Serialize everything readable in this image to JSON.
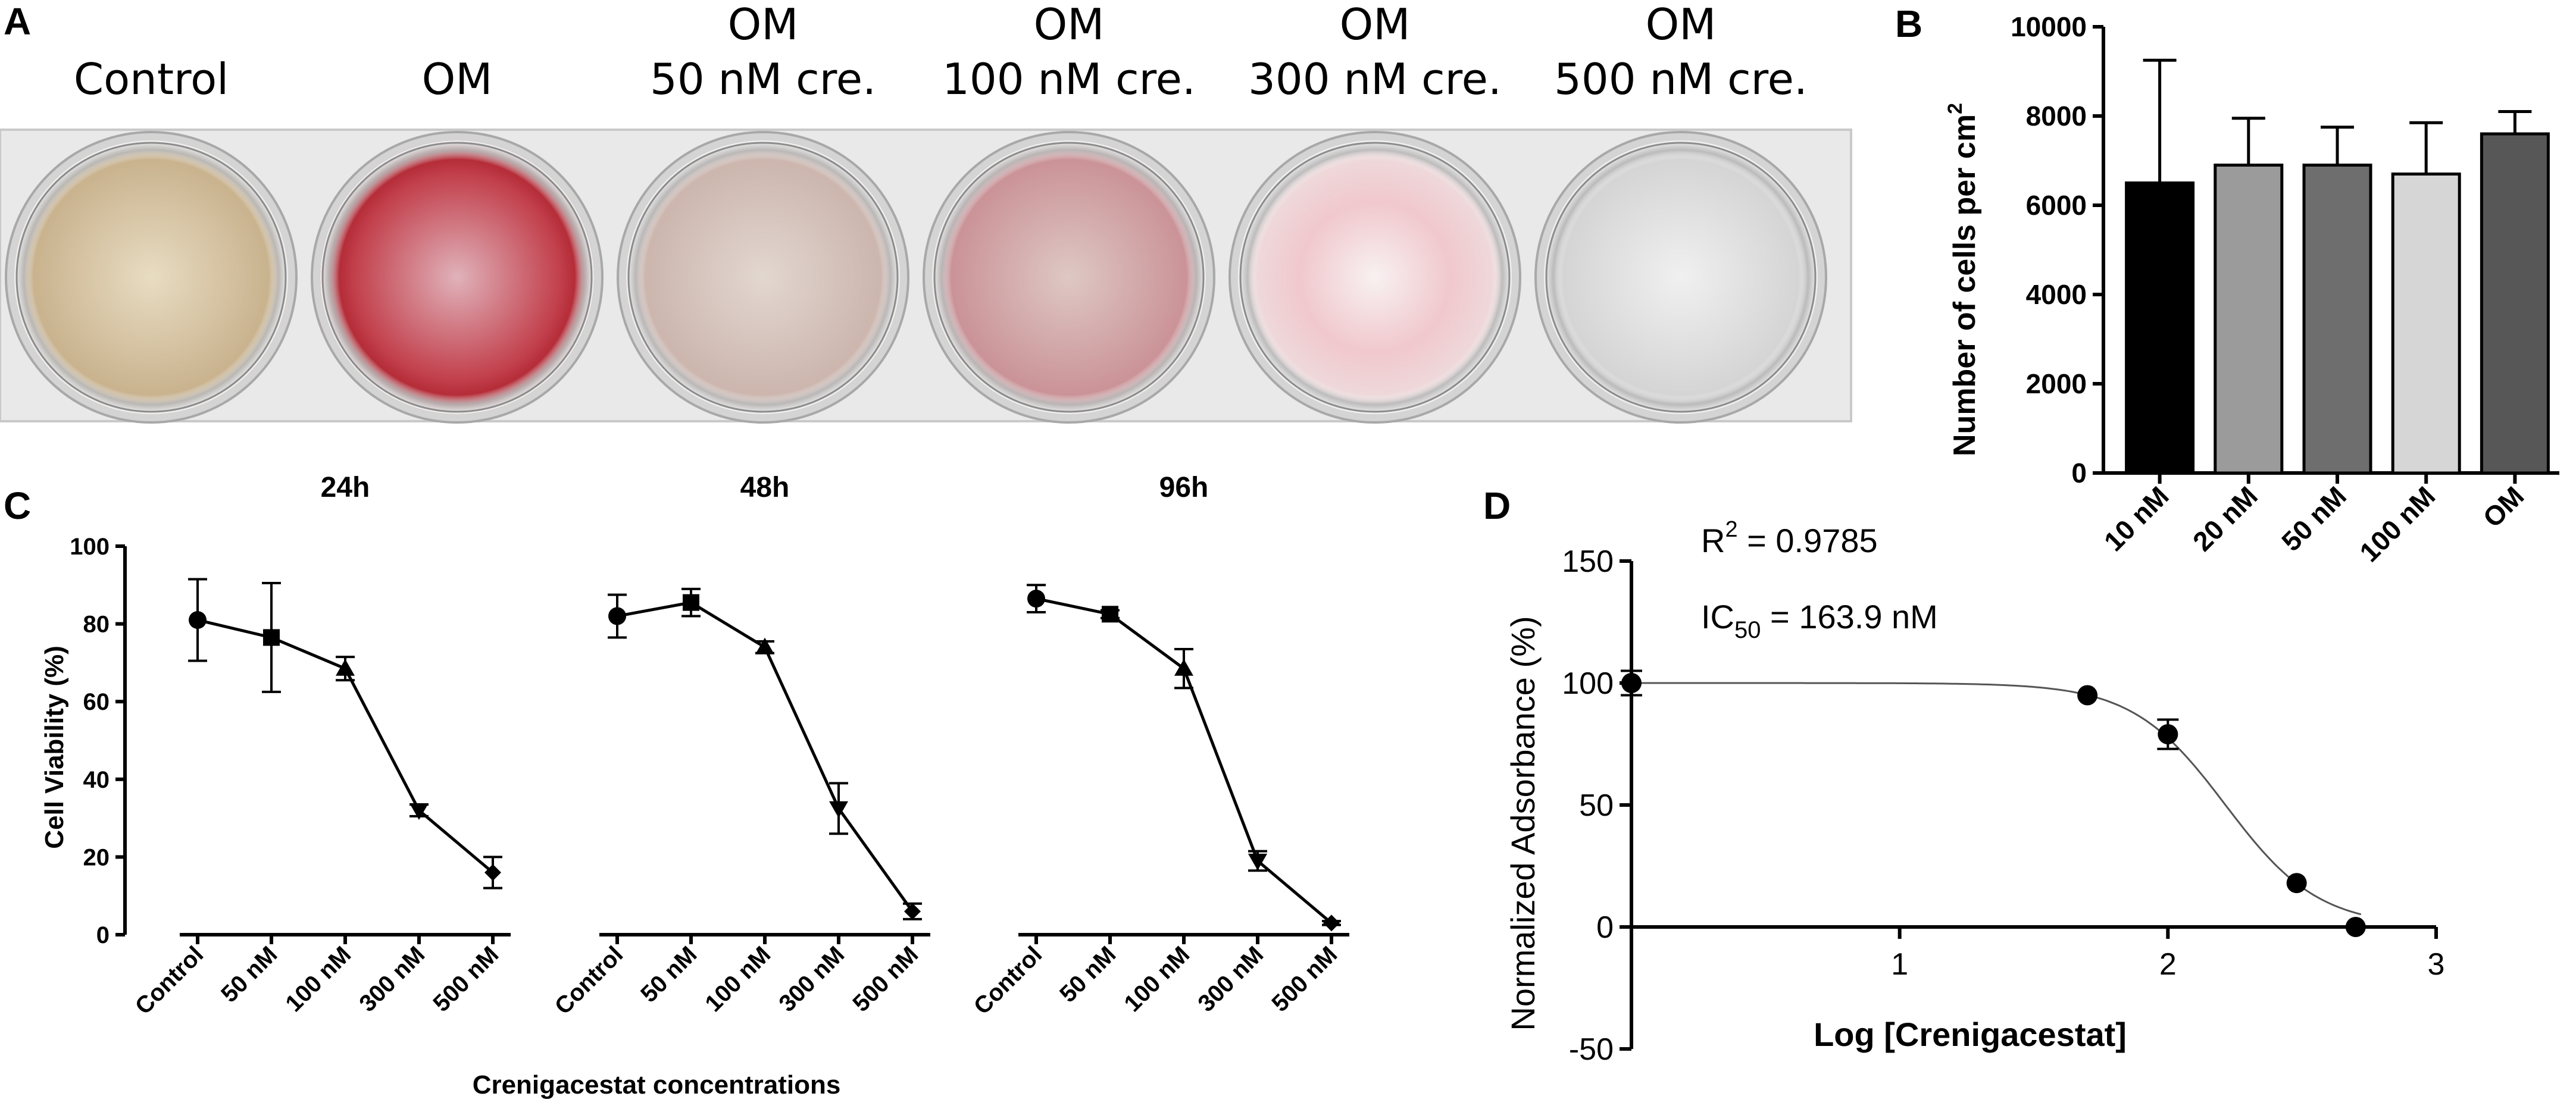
{
  "panel_letters": {
    "a": "A",
    "b": "B",
    "c": "C",
    "d": "D"
  },
  "panel_a": {
    "wells": [
      {
        "label_line1": "",
        "label_line2": "Control",
        "stain": "#c9b48f",
        "center_color": "#e6d7b8"
      },
      {
        "label_line1": "",
        "label_line2": "OM",
        "stain": "#b0202c",
        "center_color": "#d9889a"
      },
      {
        "label_line1": "OM",
        "label_line2": "50 nM cre.",
        "stain": "#c8aaa0",
        "center_color": "#ddd0c8"
      },
      {
        "label_line1": "OM",
        "label_line2": "100 nM cre.",
        "stain": "#c0606c",
        "center_color": "#dcc5c0"
      },
      {
        "label_line1": "OM",
        "label_line2": "300 nM cre.",
        "stain": "#e8a5ae",
        "center_color": "#f2e9e8"
      },
      {
        "label_line1": "OM",
        "label_line2": "500 nM cre.",
        "stain": "#cfcfcf",
        "center_color": "#eaeaea"
      }
    ]
  },
  "chart_data": [
    {
      "panel": "B",
      "type": "bar",
      "ylabel_main": "Number of cells per cm",
      "ylabel_superscript": "2",
      "ylim": [
        0,
        10000
      ],
      "yticks": [
        "0",
        "2000",
        "4000",
        "6000",
        "8000",
        "10000"
      ],
      "categories": [
        "10 nM",
        "20 nM",
        "50 nM",
        "100 nM",
        "OM"
      ],
      "values": [
        6500,
        6900,
        6900,
        6700,
        7600
      ],
      "error_upper": [
        2750,
        1050,
        850,
        1150,
        500
      ],
      "bar_colors": [
        "#000000",
        "#9b9b9b",
        "#6e6e6e",
        "#d6d6d6",
        "#575757"
      ]
    },
    {
      "panel": "C",
      "type": "line",
      "ylabel": "Cell Viability (%)",
      "xlabel": "Crenigacestat concentrations",
      "ylim": [
        0,
        100
      ],
      "yticks": [
        "0",
        "20",
        "40",
        "60",
        "80",
        "100"
      ],
      "categories": [
        "Control",
        "50 nM",
        "100 nM",
        "300 nM",
        "500 nM"
      ],
      "series": [
        {
          "name": "24h",
          "values": [
            81,
            76.5,
            68.5,
            32,
            16
          ],
          "errors": [
            10.5,
            14,
            3,
            1.5,
            4
          ],
          "markers": [
            "circle",
            "square",
            "triangle-up",
            "triangle-down",
            "diamond"
          ]
        },
        {
          "name": "48h",
          "values": [
            82,
            85.5,
            74,
            32.5,
            6
          ],
          "errors": [
            5.5,
            3.5,
            1.5,
            6.5,
            2
          ],
          "markers": [
            "circle",
            "square",
            "triangle-up",
            "triangle-down",
            "diamond"
          ]
        },
        {
          "name": "96h",
          "values": [
            86.5,
            82.5,
            68.5,
            19,
            3
          ],
          "errors": [
            3.5,
            1,
            5,
            2.5,
            0.5
          ],
          "markers": [
            "circle",
            "square",
            "triangle-up",
            "triangle-down",
            "diamond"
          ]
        }
      ]
    },
    {
      "panel": "D",
      "type": "scatter",
      "xlabel": "Log [Crenigacestat]",
      "ylabel": "Normalized Adsorbance (%)",
      "xlim": [
        0,
        3
      ],
      "ylim": [
        -50,
        150
      ],
      "xticks": [
        "1",
        "2",
        "3"
      ],
      "yticks": [
        "-50",
        "0",
        "50",
        "100",
        "150"
      ],
      "r2_label": "R",
      "r2_superscript": "2",
      "r2_value": " = 0.9785",
      "ic_label": "IC",
      "ic_subscript": "50",
      "ic_value": " = 163.9 nM",
      "points": [
        {
          "x": 0,
          "y": 100,
          "err": 5
        },
        {
          "x": 1.7,
          "y": 95,
          "err": 0
        },
        {
          "x": 2.0,
          "y": 79,
          "err": 6
        },
        {
          "x": 2.48,
          "y": 18,
          "err": 0
        },
        {
          "x": 2.7,
          "y": 0,
          "err": 0
        }
      ],
      "fit": {
        "top": 100,
        "bottom": 0,
        "log_ic50": 2.2146,
        "hill": 2.5
      }
    }
  ]
}
